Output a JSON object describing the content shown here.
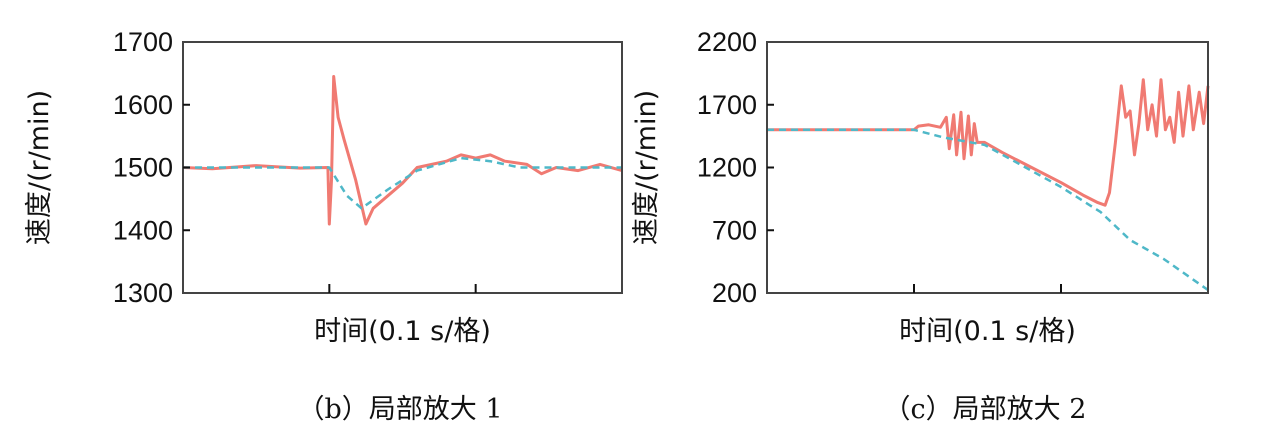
{
  "chart_data": [
    {
      "type": "line",
      "caption": "（b）局部放大 1",
      "xlabel": "时间(0.1 s/格)",
      "ylabel": "速度/(r/min)",
      "xlim": [
        0,
        0.3
      ],
      "ylim": [
        1300,
        1700
      ],
      "yticks": [
        "1300",
        "1400",
        "1500",
        "1600",
        "1700"
      ],
      "xticks": [
        0.1,
        0.2
      ],
      "grid": false,
      "series": [
        {
          "color": "#f07a72",
          "style": "solid",
          "points": [
            [
              0,
              1500
            ],
            [
              0.02,
              1498
            ],
            [
              0.05,
              1503
            ],
            [
              0.08,
              1499
            ],
            [
              0.099,
              1500
            ],
            [
              0.1,
              1410
            ],
            [
              0.1015,
              1480
            ],
            [
              0.103,
              1645
            ],
            [
              0.106,
              1580
            ],
            [
              0.11,
              1545
            ],
            [
              0.118,
              1480
            ],
            [
              0.125,
              1410
            ],
            [
              0.13,
              1435
            ],
            [
              0.14,
              1455
            ],
            [
              0.15,
              1475
            ],
            [
              0.16,
              1500
            ],
            [
              0.17,
              1505
            ],
            [
              0.18,
              1510
            ],
            [
              0.19,
              1520
            ],
            [
              0.2,
              1515
            ],
            [
              0.21,
              1520
            ],
            [
              0.22,
              1510
            ],
            [
              0.235,
              1505
            ],
            [
              0.245,
              1490
            ],
            [
              0.255,
              1500
            ],
            [
              0.27,
              1495
            ],
            [
              0.285,
              1505
            ],
            [
              0.3,
              1495
            ]
          ]
        },
        {
          "color": "#4fb8c8",
          "style": "dashed",
          "points": [
            [
              0,
              1500
            ],
            [
              0.1,
              1500
            ],
            [
              0.112,
              1455
            ],
            [
              0.122,
              1435
            ],
            [
              0.14,
              1465
            ],
            [
              0.16,
              1495
            ],
            [
              0.19,
              1515
            ],
            [
              0.21,
              1510
            ],
            [
              0.23,
              1500
            ],
            [
              0.3,
              1500
            ]
          ]
        }
      ]
    },
    {
      "type": "line",
      "caption": "（c）局部放大 2",
      "xlabel": "时间(0.1 s/格)",
      "ylabel": "速度/(r/min)",
      "xlim": [
        0,
        0.3
      ],
      "ylim": [
        200,
        2200
      ],
      "yticks": [
        "200",
        "700",
        "1200",
        "1700",
        "2200"
      ],
      "xticks": [
        0.1,
        0.2
      ],
      "grid": false,
      "series": [
        {
          "color": "#f07a72",
          "style": "solid",
          "points": [
            [
              0,
              1500
            ],
            [
              0.1,
              1500
            ],
            [
              0.103,
              1530
            ],
            [
              0.11,
              1540
            ],
            [
              0.118,
              1520
            ],
            [
              0.122,
              1600
            ],
            [
              0.124,
              1350
            ],
            [
              0.127,
              1620
            ],
            [
              0.129,
              1300
            ],
            [
              0.132,
              1640
            ],
            [
              0.134,
              1270
            ],
            [
              0.137,
              1610
            ],
            [
              0.139,
              1300
            ],
            [
              0.141,
              1550
            ],
            [
              0.143,
              1400
            ],
            [
              0.148,
              1400
            ],
            [
              0.16,
              1320
            ],
            [
              0.18,
              1200
            ],
            [
              0.2,
              1080
            ],
            [
              0.215,
              980
            ],
            [
              0.225,
              920
            ],
            [
              0.23,
              900
            ],
            [
              0.233,
              1000
            ],
            [
              0.237,
              1400
            ],
            [
              0.241,
              1850
            ],
            [
              0.244,
              1600
            ],
            [
              0.247,
              1650
            ],
            [
              0.25,
              1300
            ],
            [
              0.253,
              1550
            ],
            [
              0.256,
              1900
            ],
            [
              0.259,
              1500
            ],
            [
              0.262,
              1700
            ],
            [
              0.265,
              1450
            ],
            [
              0.268,
              1900
            ],
            [
              0.271,
              1500
            ],
            [
              0.274,
              1600
            ],
            [
              0.277,
              1400
            ],
            [
              0.28,
              1800
            ],
            [
              0.283,
              1450
            ],
            [
              0.287,
              1850
            ],
            [
              0.29,
              1500
            ],
            [
              0.294,
              1800
            ],
            [
              0.297,
              1550
            ],
            [
              0.3,
              1850
            ]
          ]
        },
        {
          "color": "#4fb8c8",
          "style": "dashed",
          "points": [
            [
              0,
              1500
            ],
            [
              0.1,
              1500
            ],
            [
              0.12,
              1440
            ],
            [
              0.148,
              1380
            ],
            [
              0.2,
              1045
            ],
            [
              0.227,
              845
            ],
            [
              0.247,
              622
            ],
            [
              0.27,
              470
            ],
            [
              0.3,
              224
            ]
          ]
        }
      ]
    }
  ]
}
